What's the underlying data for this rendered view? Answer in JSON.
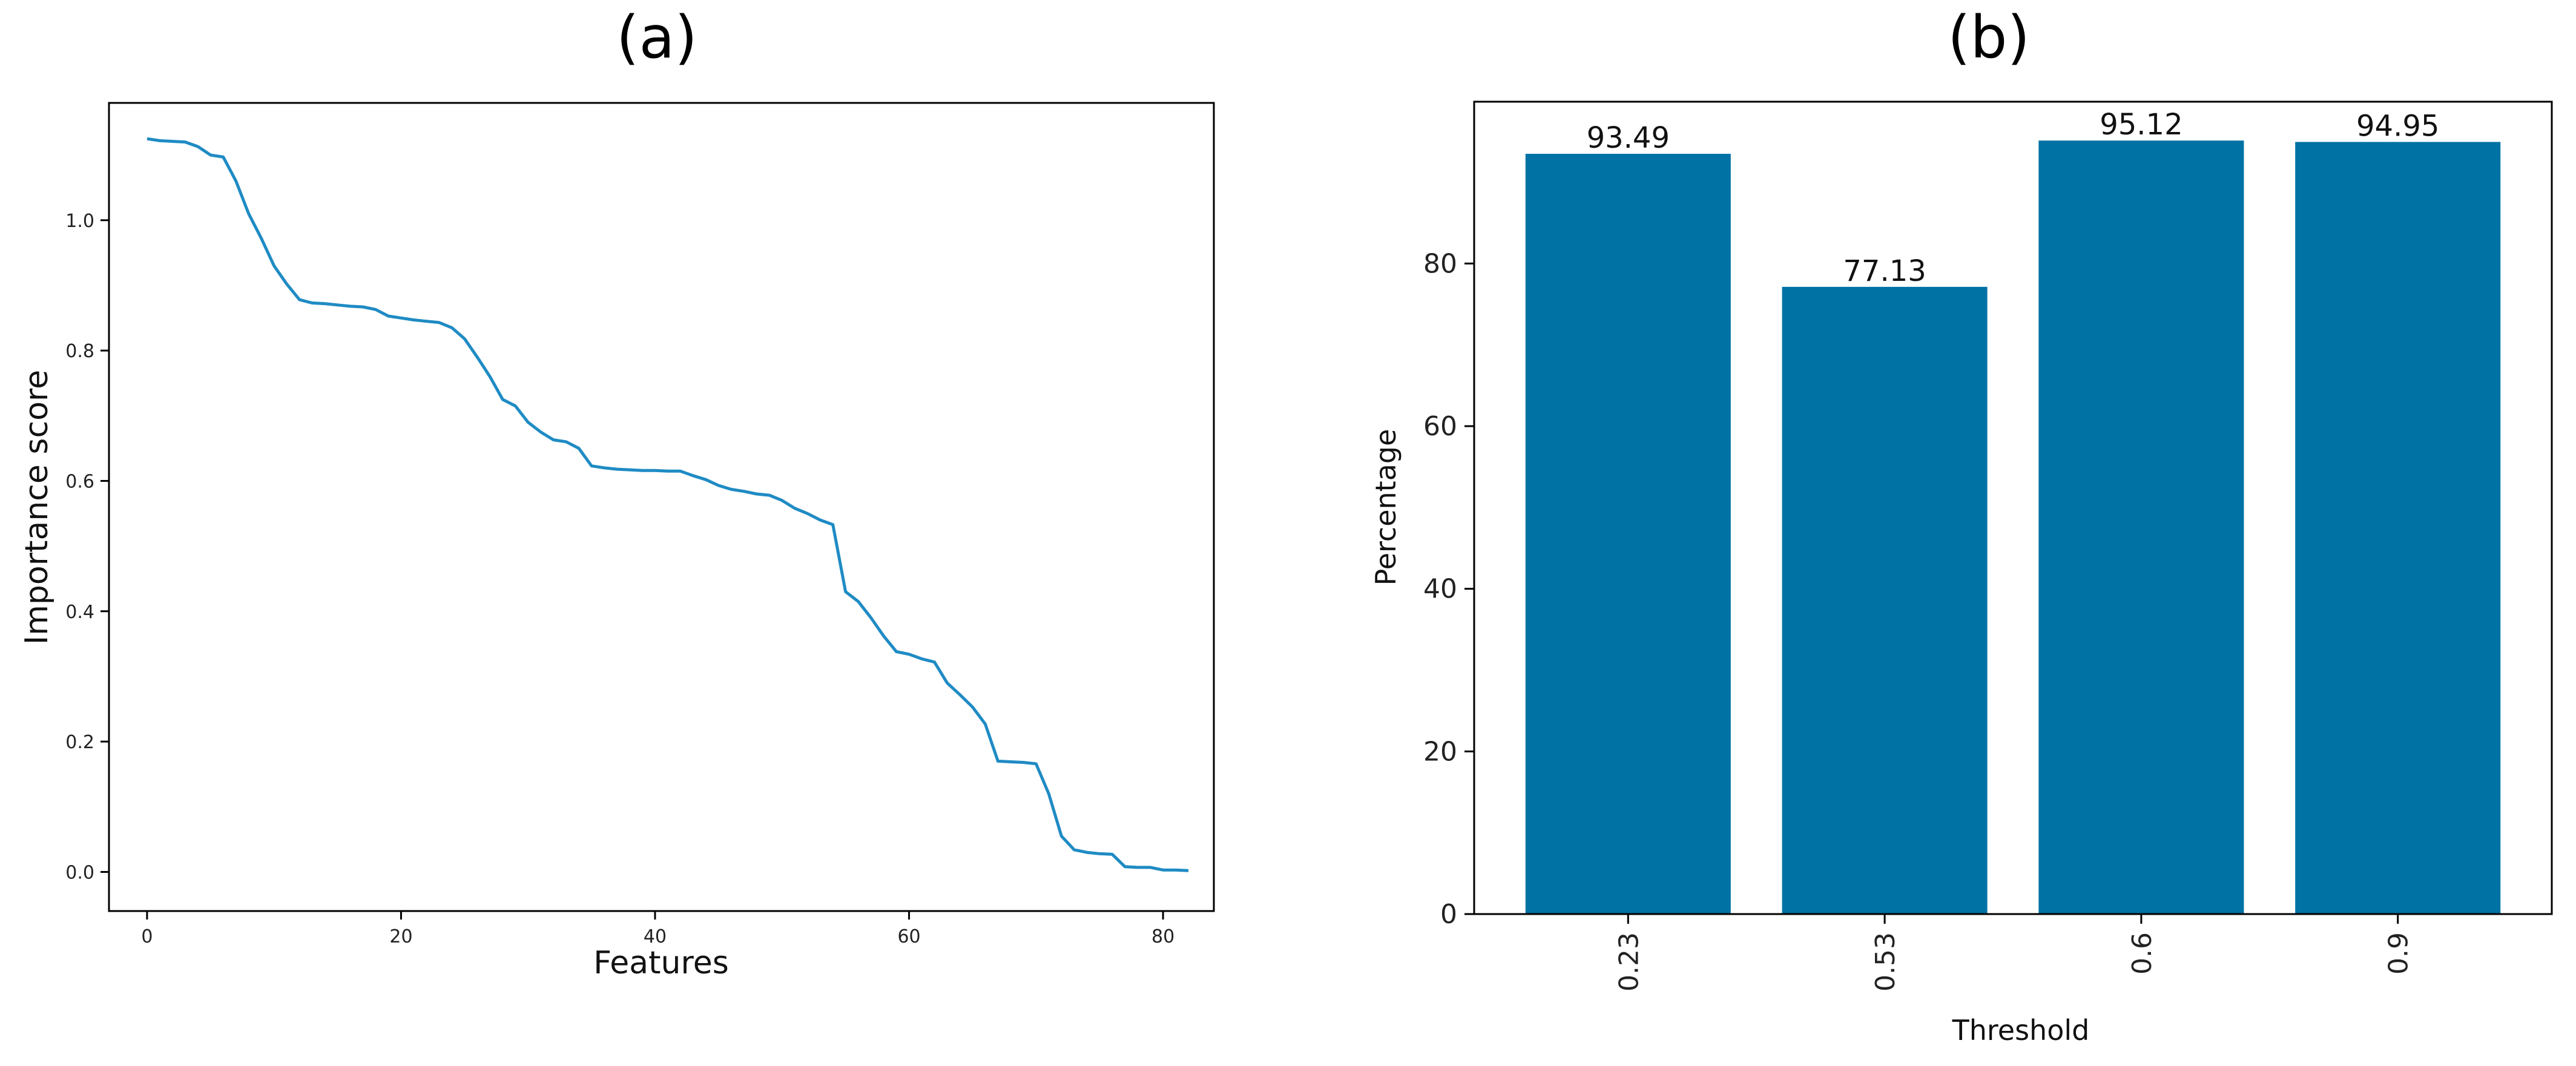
{
  "chart_data": [
    {
      "id": "a",
      "type": "line",
      "title": "(a)",
      "xlabel": "Features",
      "ylabel": "Importance score",
      "xlim": [
        -3,
        84
      ],
      "ylim": [
        -0.06,
        1.18
      ],
      "xticks": [
        0,
        20,
        40,
        60,
        80
      ],
      "yticks": [
        0.0,
        0.2,
        0.4,
        0.6,
        0.8,
        1.0
      ],
      "color": "#1f8bc4",
      "grid": false,
      "x": [
        0,
        1,
        2,
        3,
        4,
        5,
        6,
        7,
        8,
        9,
        10,
        11,
        12,
        13,
        14,
        15,
        16,
        17,
        18,
        19,
        20,
        21,
        22,
        23,
        24,
        25,
        26,
        27,
        28,
        29,
        30,
        31,
        32,
        33,
        34,
        35,
        36,
        37,
        38,
        39,
        40,
        41,
        42,
        43,
        44,
        45,
        46,
        47,
        48,
        49,
        50,
        51,
        52,
        53,
        54,
        55,
        56,
        57,
        58,
        59,
        60,
        61,
        62,
        63,
        64,
        65,
        66,
        67,
        68,
        69,
        70,
        71,
        72,
        73,
        74,
        75,
        76,
        77,
        78,
        79,
        80,
        81,
        82
      ],
      "y": [
        1.125,
        1.122,
        1.121,
        1.12,
        1.113,
        1.1,
        1.097,
        1.06,
        1.01,
        0.972,
        0.93,
        0.902,
        0.878,
        0.873,
        0.872,
        0.87,
        0.868,
        0.867,
        0.863,
        0.853,
        0.85,
        0.847,
        0.845,
        0.843,
        0.835,
        0.818,
        0.79,
        0.76,
        0.725,
        0.715,
        0.69,
        0.675,
        0.663,
        0.66,
        0.65,
        0.623,
        0.62,
        0.618,
        0.617,
        0.616,
        0.616,
        0.615,
        0.615,
        0.608,
        0.602,
        0.593,
        0.587,
        0.584,
        0.58,
        0.578,
        0.57,
        0.558,
        0.55,
        0.54,
        0.533,
        0.43,
        0.415,
        0.39,
        0.362,
        0.338,
        0.334,
        0.327,
        0.322,
        0.29,
        0.272,
        0.253,
        0.227,
        0.17,
        0.169,
        0.168,
        0.166,
        0.12,
        0.055,
        0.034,
        0.03,
        0.028,
        0.027,
        0.008,
        0.007,
        0.007,
        0.003,
        0.003,
        0.002
      ]
    },
    {
      "id": "b",
      "type": "bar",
      "title": "(b)",
      "xlabel": "Threshold",
      "ylabel": "Percentage",
      "categories": [
        "0.23",
        "0.53",
        "0.6",
        "0.9"
      ],
      "values": [
        93.49,
        77.13,
        95.12,
        94.95
      ],
      "data_labels": [
        "93.49",
        "77.13",
        "95.12",
        "94.95"
      ],
      "ylim": [
        0,
        99.9
      ],
      "yticks": [
        0,
        20,
        40,
        60,
        80
      ],
      "color": "#0072a4",
      "grid": false
    }
  ]
}
